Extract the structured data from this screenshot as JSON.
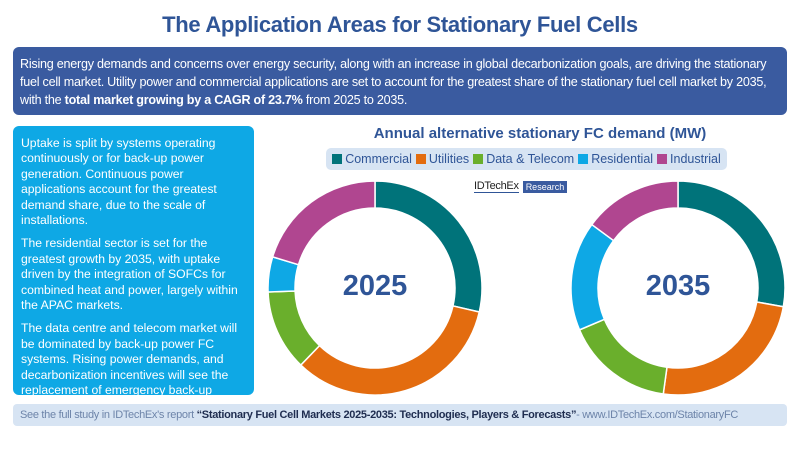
{
  "title": "The Application Areas for Stationary Fuel Cells",
  "intro": {
    "text_before": "Rising energy demands and concerns over energy security, along with an increase in global decarbonization goals, are driving the stationary fuel cell market. Utility power and commercial applications are set to account for the greatest share of the stationary fuel cell market by 2035, with the ",
    "bold": "total market growing by a CAGR of 23.7%",
    "text_after": " from 2025 to 2035."
  },
  "side_panel": {
    "paragraphs": [
      "Uptake is split by systems operating continuously or for back-up power generation. Continuous power applications account for the greatest demand share, due to the scale of installations.",
      "The residential sector is set for the greatest growth by 2035, with uptake driven by the integration of SOFCs for combined heat and power, largely within the APAC markets.",
      "The data centre and telecom market will be dominated by back-up power FC systems. Rising power demands, and decarbonization incentives will see the replacement of emergency back-up diesel generators."
    ]
  },
  "logo": {
    "name": "IDTechEx",
    "badge": "Research"
  },
  "footer": {
    "prefix": "See the full study in IDTechEx's report ",
    "report": "“Stationary Fuel Cell Markets 2025-2035: Technologies, Players & Forecasts”",
    "suffix": " - www.IDTechEx.com/StationaryFC"
  },
  "colors": {
    "Commercial": "#00737a",
    "Utilities": "#e36c0f",
    "Data & Telecom": "#6aaf2c",
    "Residential": "#0ea8e5",
    "Industrial": "#b04690"
  },
  "chart_data": [
    {
      "type": "pie",
      "title": "Annual alternative stationary FC demand (MW)",
      "label": "2025",
      "categories": [
        "Commercial",
        "Utilities",
        "Data & Telecom",
        "Residential",
        "Industrial"
      ],
      "values": [
        28.6,
        33.6,
        12.2,
        5.3,
        20.3
      ],
      "unit": "% share (estimated from arc angles)",
      "legend_position": "top"
    },
    {
      "type": "pie",
      "title": "Annual alternative stationary FC demand (MW)",
      "label": "2035",
      "categories": [
        "Commercial",
        "Utilities",
        "Data & Telecom",
        "Residential",
        "Industrial"
      ],
      "values": [
        27.8,
        24.4,
        16.4,
        16.5,
        14.9
      ],
      "unit": "% share (estimated from arc angles)",
      "legend_position": "top"
    }
  ]
}
